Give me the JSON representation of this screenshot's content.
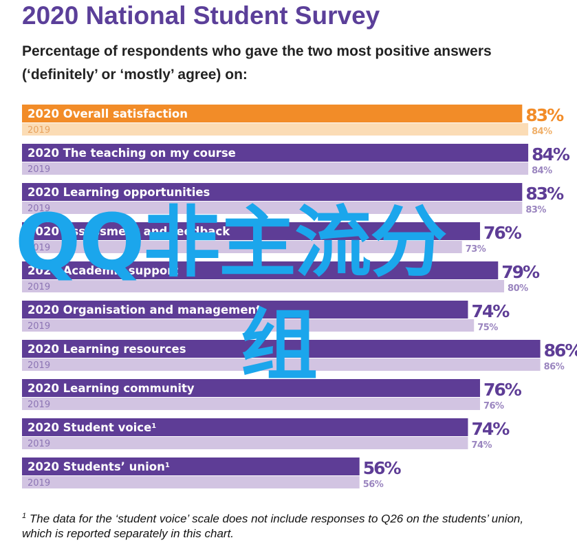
{
  "title": "2020 National Student Survey",
  "subtitle": "Percentage of respondents who gave the two most positive answers (‘definitely’ or ‘mostly’ agree) on:",
  "footnote_mark": "1",
  "footnote_text": "The data for the ‘student voice’ scale does not include responses to Q26 on the students’ union, which is reported separately in this chart.",
  "watermark": {
    "line1": "QQ非主流分",
    "line2": "组"
  },
  "colors": {
    "orange_2020": "#f28c28",
    "orange_2019": "#fbdcb5",
    "purple_2020": "#5e3d96",
    "purple_2019": "#d2c4e2",
    "value_text": "#5e3d96",
    "value_text_orange": "#f28c28"
  },
  "chart_data": {
    "type": "bar",
    "orientation": "horizontal",
    "year_labels": [
      "2020",
      "2019"
    ],
    "series": [
      {
        "name": "2020",
        "values": [
          83,
          84,
          83,
          76,
          79,
          74,
          86,
          76,
          74,
          56
        ]
      },
      {
        "name": "2019",
        "values": [
          84,
          84,
          83,
          73,
          80,
          75,
          86,
          76,
          74,
          56
        ]
      }
    ],
    "categories": [
      {
        "label": "Overall satisfaction",
        "sup": "",
        "highlight": true
      },
      {
        "label": "The teaching on my course",
        "sup": "",
        "highlight": false
      },
      {
        "label": "Learning opportunities",
        "sup": "",
        "highlight": false
      },
      {
        "label": "Assessment and feedback",
        "sup": "",
        "highlight": false
      },
      {
        "label": "Academic support",
        "sup": "",
        "highlight": false
      },
      {
        "label": "Organisation and management",
        "sup": "",
        "highlight": false
      },
      {
        "label": "Learning resources",
        "sup": "",
        "highlight": false
      },
      {
        "label": "Learning community",
        "sup": "",
        "highlight": false
      },
      {
        "label": "Student voice",
        "sup": "1",
        "highlight": false
      },
      {
        "label": "Students’ union",
        "sup": "1",
        "highlight": false
      }
    ],
    "value_suffix": "%",
    "xlim": [
      0,
      100
    ]
  }
}
